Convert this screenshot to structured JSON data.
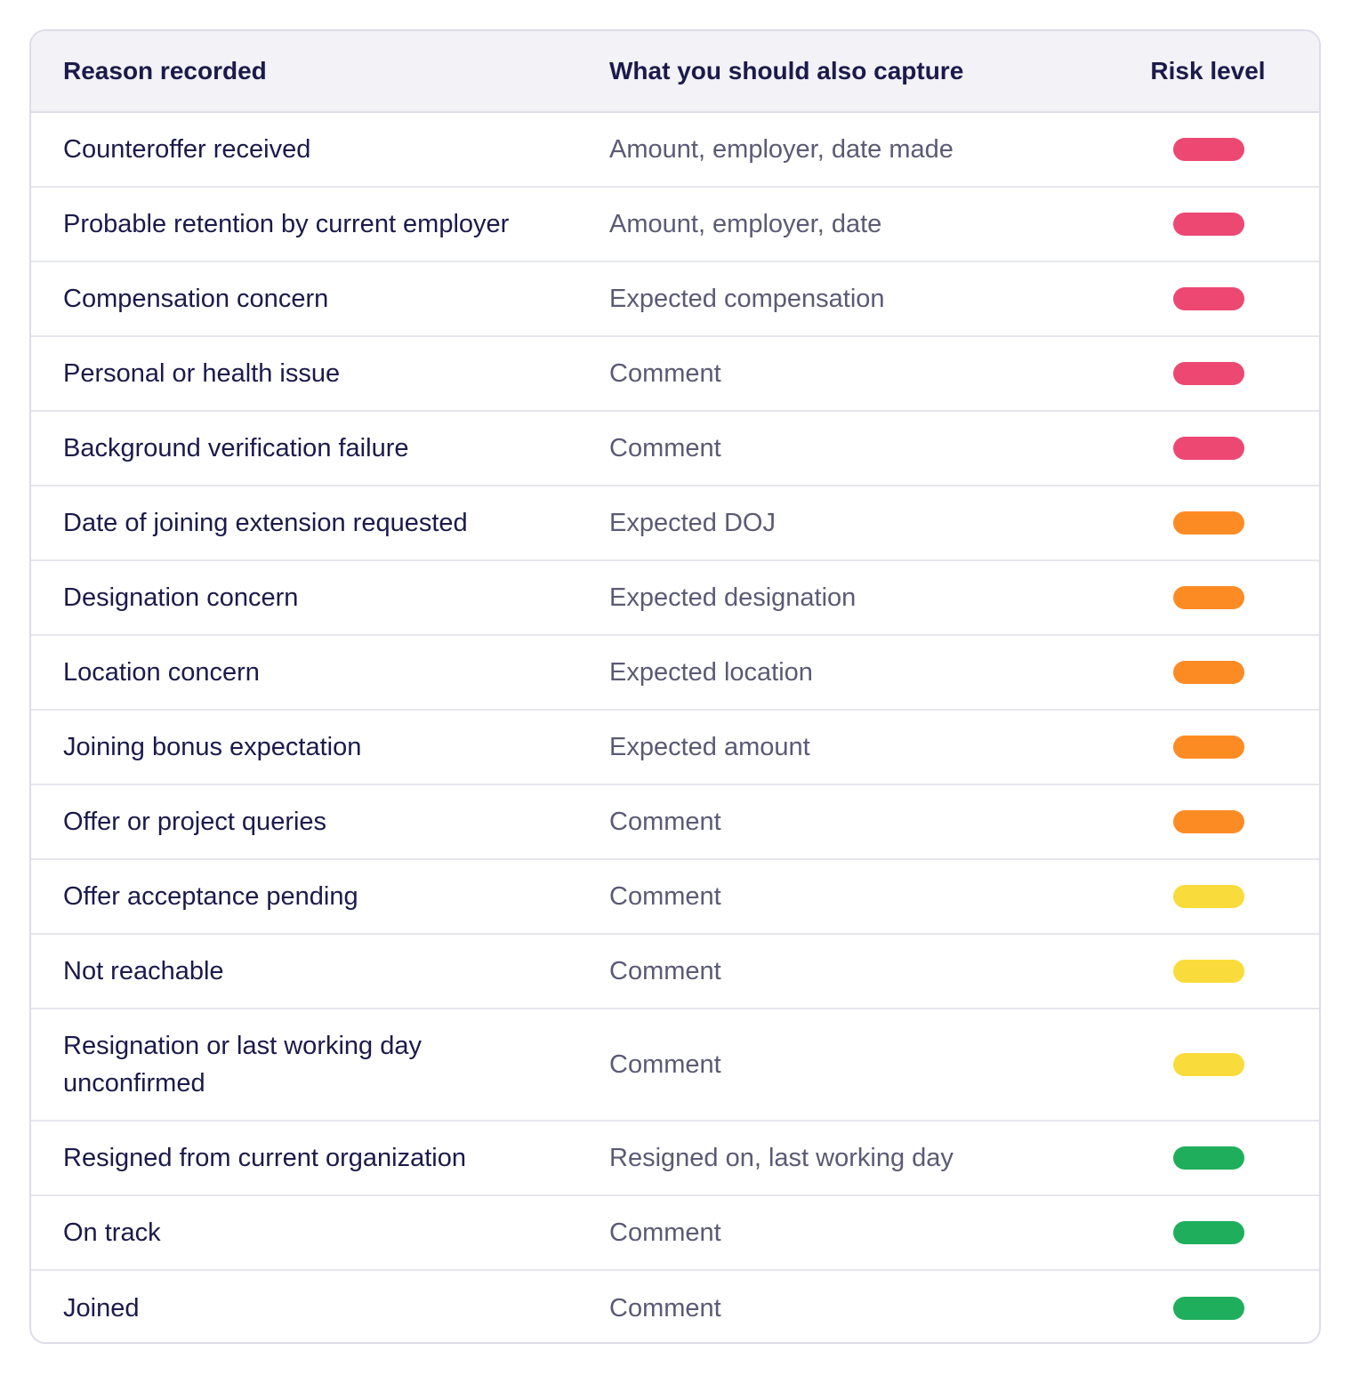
{
  "headers": {
    "reason": "Reason recorded",
    "capture": "What you should also capture",
    "risk": "Risk level"
  },
  "risk_colors": {
    "high": "#ec4872",
    "medium": "#fd8b24",
    "low": "#f9dc3b",
    "none": "#1faf5c"
  },
  "rows": [
    {
      "reason": "Counteroffer received",
      "capture": "Amount, employer, date made",
      "risk": "high"
    },
    {
      "reason": "Probable retention by current employer",
      "capture": "Amount, employer, date",
      "risk": "high"
    },
    {
      "reason": "Compensation concern",
      "capture": "Expected compensation",
      "risk": "high"
    },
    {
      "reason": "Personal or health issue",
      "capture": "Comment",
      "risk": "high"
    },
    {
      "reason": "Background verification failure",
      "capture": "Comment",
      "risk": "high"
    },
    {
      "reason": "Date of joining extension requested",
      "capture": "Expected DOJ",
      "risk": "medium"
    },
    {
      "reason": "Designation concern",
      "capture": "Expected designation",
      "risk": "medium"
    },
    {
      "reason": "Location concern",
      "capture": "Expected location",
      "risk": "medium"
    },
    {
      "reason": "Joining bonus expectation",
      "capture": "Expected amount",
      "risk": "medium"
    },
    {
      "reason": "Offer or project queries",
      "capture": "Comment",
      "risk": "medium"
    },
    {
      "reason": "Offer acceptance pending",
      "capture": "Comment",
      "risk": "low"
    },
    {
      "reason": "Not reachable",
      "capture": "Comment",
      "risk": "low"
    },
    {
      "reason": "Resignation or last working day unconfirmed",
      "capture": "Comment",
      "risk": "low"
    },
    {
      "reason": "Resigned from current organization",
      "capture": "Resigned on, last working day",
      "risk": "none"
    },
    {
      "reason": "On track",
      "capture": "Comment",
      "risk": "none"
    },
    {
      "reason": "Joined",
      "capture": "Comment",
      "risk": "none"
    }
  ]
}
